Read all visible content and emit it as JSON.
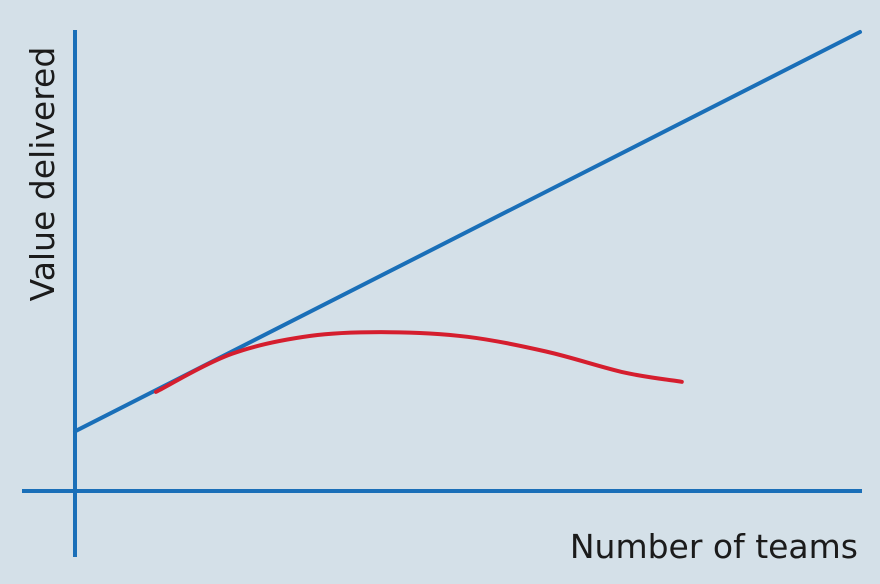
{
  "chart_data": {
    "type": "line",
    "title": "",
    "xlabel": "Number of teams",
    "ylabel": "Value delivered",
    "xlim": [
      0,
      100
    ],
    "ylim": [
      0,
      100
    ],
    "grid": false,
    "legend": "none",
    "series": [
      {
        "color": "#1a6fb8",
        "x": [
          0,
          100
        ],
        "y": [
          13,
          100
        ]
      },
      {
        "color": "#d51e2e",
        "x": [
          10.3,
          20,
          30,
          40,
          50,
          60,
          70,
          77.3
        ],
        "y": [
          21.6,
          29.9,
          33.8,
          34.6,
          33.6,
          30.4,
          25.8,
          23.8
        ]
      }
    ]
  }
}
